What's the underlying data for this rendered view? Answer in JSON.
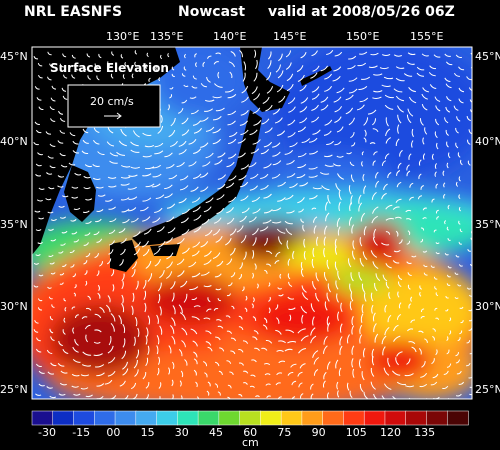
{
  "header": {
    "source": "NRL EASNFS",
    "product": "Nowcast",
    "valid": "valid at 2008/05/26 06Z"
  },
  "map": {
    "field_label": "Surface Elevation",
    "vector_scale_label": "20 cm/s",
    "lon_labels": [
      "130°E",
      "135°E",
      "140°E",
      "145°E",
      "150°E",
      "155°E"
    ],
    "lat_labels": [
      "45°N",
      "40°N",
      "35°N",
      "30°N",
      "25°N"
    ],
    "land_color": "#000000",
    "vector_color": "#ffffff"
  },
  "colorbar": {
    "tick_labels": [
      "-30",
      "-15",
      "00",
      "15",
      "30",
      "45",
      "60",
      "75",
      "90",
      "105",
      "120",
      "135"
    ],
    "unit": "cm",
    "colors": [
      "#1a0f8f",
      "#0d2ec4",
      "#1e4bdf",
      "#2f6ce8",
      "#3d8cee",
      "#45aaf0",
      "#3ccde8",
      "#2ee4b8",
      "#3ad86a",
      "#6ed830",
      "#b8e020",
      "#f0ee18",
      "#ffc818",
      "#ff9c1a",
      "#ff6a1a",
      "#ff3c14",
      "#f0180e",
      "#d00c0c",
      "#a80808",
      "#7a0606",
      "#4a0404"
    ]
  }
}
